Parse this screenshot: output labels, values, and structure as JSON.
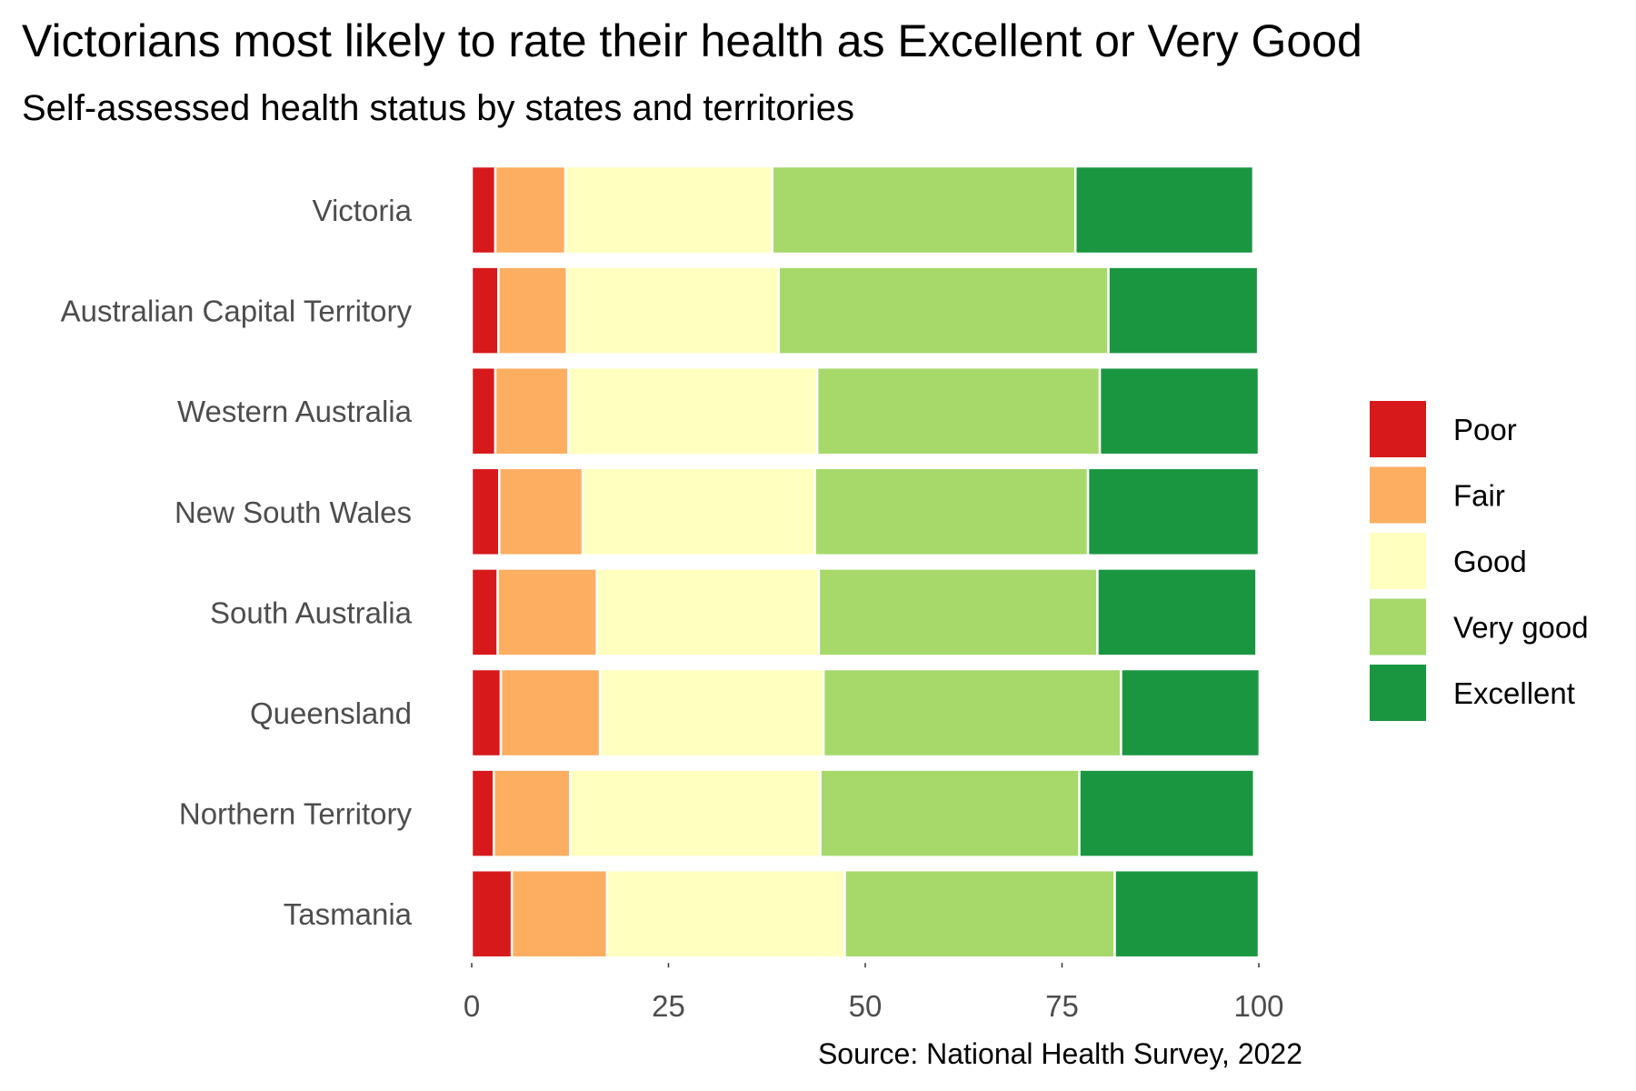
{
  "chart_data": {
    "type": "bar",
    "orientation": "horizontal",
    "stacked": true,
    "title": "Victorians most likely to rate their health as Excellent or Very Good",
    "subtitle": "Self-assessed health status by states and territories",
    "caption": "Source: National Health Survey, 2022",
    "categories": [
      "Victoria",
      "Australian Capital Territory",
      "Western Australia",
      "New South Wales",
      "South Australia",
      "Queensland",
      "Northern Territory",
      "Tasmania"
    ],
    "series": [
      {
        "name": "Poor",
        "color": "#d7191c",
        "values": [
          3.0,
          3.4,
          3.0,
          3.5,
          3.3,
          3.7,
          2.8,
          5.1
        ]
      },
      {
        "name": "Fair",
        "color": "#fdae61",
        "values": [
          8.9,
          8.7,
          9.3,
          10.6,
          12.6,
          12.6,
          9.7,
          12.1
        ]
      },
      {
        "name": "Good",
        "color": "#ffffbf",
        "values": [
          26.3,
          26.9,
          31.6,
          29.5,
          28.2,
          28.4,
          31.8,
          30.2
        ]
      },
      {
        "name": "Very good",
        "color": "#a6d96a",
        "values": [
          38.5,
          41.9,
          35.9,
          34.7,
          35.4,
          37.8,
          32.9,
          34.3
        ]
      },
      {
        "name": "Excellent",
        "color": "#1a9641",
        "values": [
          22.6,
          19.0,
          20.2,
          21.7,
          20.2,
          17.6,
          22.2,
          18.3
        ]
      }
    ],
    "xlim": [
      0,
      100
    ],
    "x_ticks": [
      0,
      25,
      50,
      75,
      100
    ],
    "xlabel": "",
    "ylabel": "",
    "grid": false,
    "legend_position": "right"
  }
}
